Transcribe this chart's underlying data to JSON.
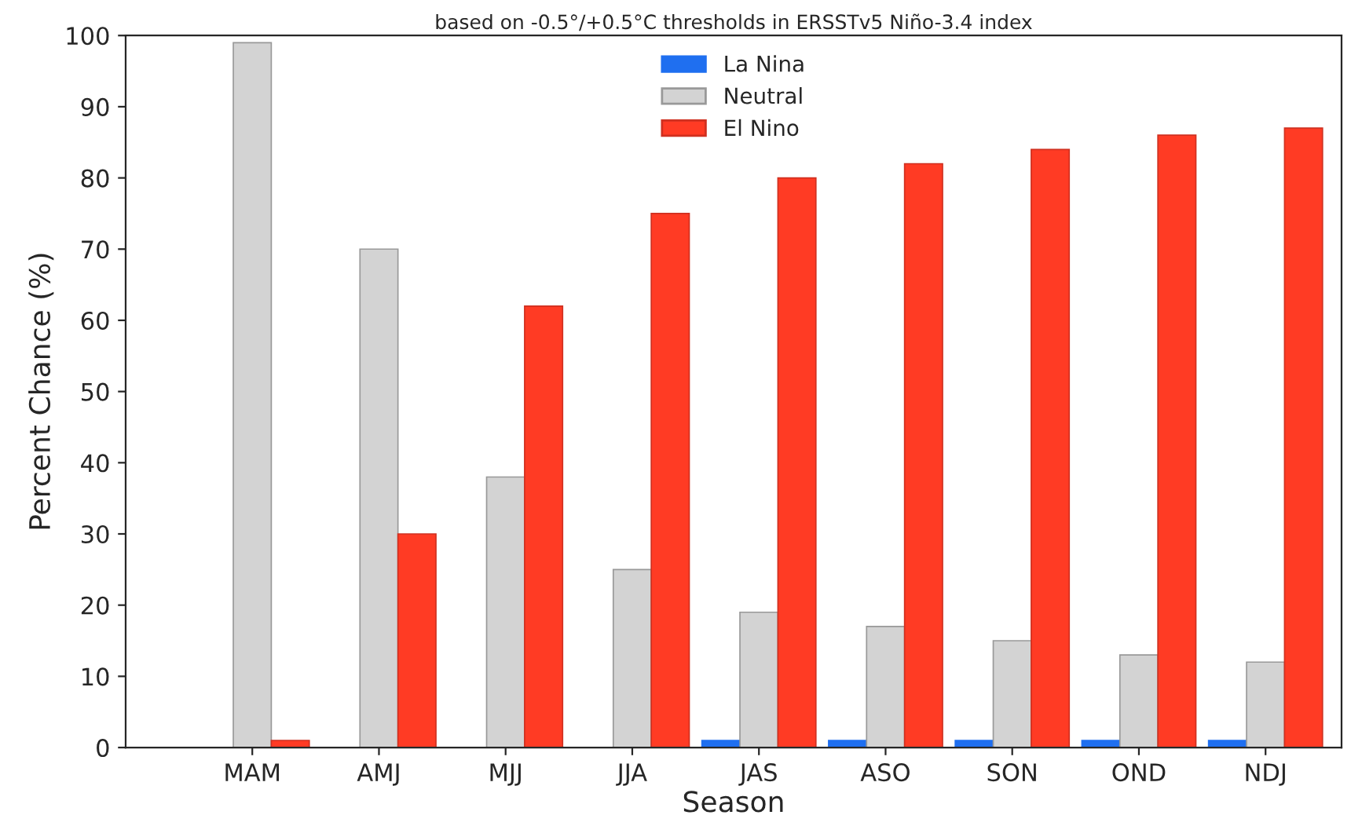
{
  "chart_data": {
    "type": "bar",
    "title": "based on -0.5°/+0.5°C thresholds in ERSSTv5 Niño-3.4 index",
    "xlabel": "Season",
    "ylabel": "Percent Chance (%)",
    "categories": [
      "MAM",
      "AMJ",
      "MJJ",
      "JJA",
      "JAS",
      "ASO",
      "SON",
      "OND",
      "NDJ"
    ],
    "series": [
      {
        "name": "La Nina",
        "color": "#1f6ff0",
        "values": [
          0,
          0,
          0,
          0,
          1,
          1,
          1,
          1,
          1
        ]
      },
      {
        "name": "Neutral",
        "color": "#d3d3d3",
        "values": [
          99,
          70,
          38,
          25,
          19,
          17,
          15,
          13,
          12
        ]
      },
      {
        "name": "El Nino",
        "color": "#ff3b24",
        "values": [
          1,
          30,
          62,
          75,
          80,
          82,
          84,
          86,
          87
        ]
      }
    ],
    "ylim": [
      0,
      100
    ],
    "yticks": [
      0,
      10,
      20,
      30,
      40,
      50,
      60,
      70,
      80,
      90,
      100
    ],
    "grid": false,
    "legend": "top"
  }
}
